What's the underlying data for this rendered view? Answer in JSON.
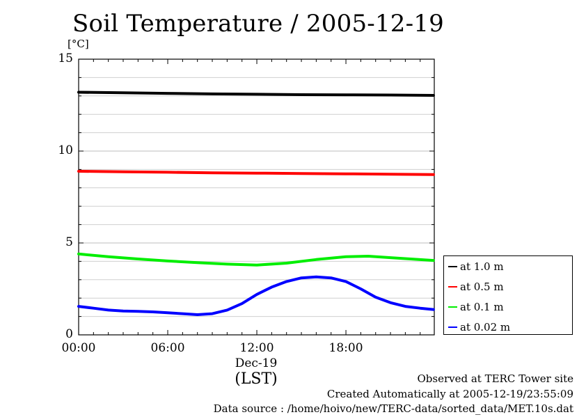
{
  "chart_data": {
    "type": "line",
    "title": "Soil Temperature / 2005-12-19",
    "ylabel": "[°C]",
    "xlabel": "(LST)",
    "x_date_label": "Dec-19",
    "x_range_hours": [
      0,
      23.95
    ],
    "ylim": [
      0,
      15
    ],
    "y_ticks": [
      "0",
      "5",
      "10",
      "15"
    ],
    "x_ticks": [
      {
        "hour": 0,
        "label": "00:00"
      },
      {
        "hour": 6,
        "label": "06:00"
      },
      {
        "hour": 12,
        "label": "12:00"
      },
      {
        "hour": 18,
        "label": "18:00"
      }
    ],
    "grid": true,
    "legend_position": "right",
    "series": [
      {
        "name": "at 1.0 m",
        "color": "#000000",
        "x": [
          0,
          3,
          6,
          9,
          12,
          15,
          18,
          21,
          23.9
        ],
        "y": [
          13.2,
          13.17,
          13.14,
          13.11,
          13.09,
          13.07,
          13.06,
          13.05,
          13.03
        ]
      },
      {
        "name": "at 0.5 m",
        "color": "#ff0000",
        "x": [
          0,
          3,
          6,
          9,
          12,
          15,
          18,
          21,
          23.9
        ],
        "y": [
          8.9,
          8.87,
          8.85,
          8.82,
          8.8,
          8.78,
          8.76,
          8.74,
          8.72
        ]
      },
      {
        "name": "at 0.1 m",
        "color": "#00ee00",
        "x": [
          0,
          2,
          4,
          6,
          8,
          10,
          12,
          14,
          16,
          18,
          19.5,
          21,
          23.9
        ],
        "y": [
          4.4,
          4.25,
          4.13,
          4.02,
          3.93,
          3.85,
          3.8,
          3.9,
          4.1,
          4.25,
          4.28,
          4.2,
          4.05
        ]
      },
      {
        "name": "at 0.02 m",
        "color": "#0000ff",
        "x": [
          0,
          1,
          2,
          3,
          4,
          5,
          6,
          7,
          8,
          9,
          10,
          11,
          12,
          13,
          14,
          15,
          16,
          17,
          18,
          19,
          20,
          21,
          22,
          23,
          23.9
        ],
        "y": [
          1.55,
          1.45,
          1.35,
          1.3,
          1.28,
          1.25,
          1.2,
          1.15,
          1.1,
          1.15,
          1.35,
          1.7,
          2.2,
          2.6,
          2.9,
          3.1,
          3.15,
          3.1,
          2.9,
          2.5,
          2.05,
          1.75,
          1.55,
          1.45,
          1.38
        ]
      }
    ]
  },
  "notes": {
    "observed": "Observed at TERC Tower site",
    "created": "Created Automatically at 2005-12-19/23:55:09",
    "source": "Data source : /home/hoivo/new/TERC-data/sorted_data/MET.10s.dat"
  }
}
